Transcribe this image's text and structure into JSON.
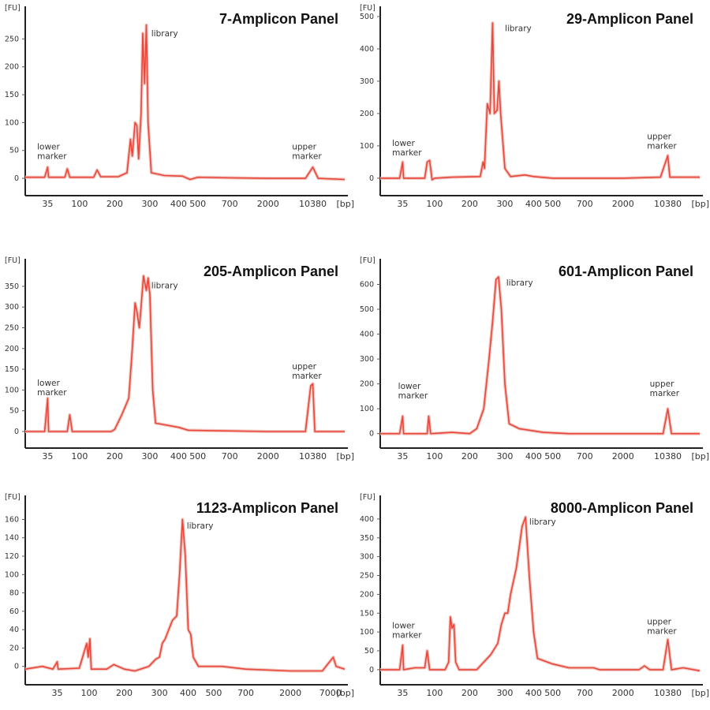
{
  "chart_data": [
    {
      "type": "line",
      "title": "7-Amplicon Panel",
      "ylabel": "[FU]",
      "xlabel": "[bp]",
      "yticks": [
        0,
        50,
        100,
        150,
        200,
        250
      ],
      "ylim": [
        -31,
        300
      ],
      "xticks": [
        "35",
        "100",
        "200",
        "300",
        "400",
        "500",
        "700",
        "2000",
        "10380"
      ],
      "grid": false,
      "color": "#e8483c",
      "annotations": [
        {
          "text": [
            "lower",
            "marker"
          ],
          "at": [
            28,
            52
          ]
        },
        {
          "text": [
            "library"
          ],
          "at": [
            305,
            255
          ]
        },
        {
          "text": [
            "upper",
            "marker"
          ],
          "at": [
            6500,
            52
          ]
        }
      ],
      "series": [
        {
          "points": [
            [
              20,
              2
            ],
            [
              33,
              2
            ],
            [
              35,
              20
            ],
            [
              37,
              2
            ],
            [
              70,
              2
            ],
            [
              75,
              17
            ],
            [
              80,
              2
            ],
            [
              140,
              2
            ],
            [
              150,
              15
            ],
            [
              160,
              3
            ],
            [
              210,
              3
            ],
            [
              235,
              10
            ],
            [
              245,
              70
            ],
            [
              250,
              40
            ],
            [
              258,
              100
            ],
            [
              263,
              95
            ],
            [
              268,
              35
            ],
            [
              275,
              115
            ],
            [
              280,
              260
            ],
            [
              285,
              170
            ],
            [
              290,
              275
            ],
            [
              295,
              100
            ],
            [
              305,
              10
            ],
            [
              350,
              5
            ],
            [
              420,
              4
            ],
            [
              460,
              -2
            ],
            [
              500,
              2
            ],
            [
              700,
              1
            ],
            [
              2000,
              0
            ],
            [
              9000,
              0
            ],
            [
              10380,
              20
            ],
            [
              12000,
              0
            ],
            [
              20000,
              -2
            ]
          ]
        }
      ]
    },
    {
      "type": "line",
      "title": "29-Amplicon Panel",
      "ylabel": "[FU]",
      "xlabel": "[bp]",
      "yticks": [
        0,
        100,
        200,
        300,
        400,
        500
      ],
      "ylim": [
        -54,
        517
      ],
      "xticks": [
        "35",
        "100",
        "200",
        "300",
        "400",
        "500",
        "700",
        "2000",
        "10380"
      ],
      "grid": false,
      "color": "#e8483c",
      "annotations": [
        {
          "text": [
            "lower",
            "marker"
          ],
          "at": [
            28,
            100
          ]
        },
        {
          "text": [
            "library"
          ],
          "at": [
            300,
            455
          ]
        },
        {
          "text": [
            "upper",
            "marker"
          ],
          "at": [
            6500,
            120
          ]
        }
      ],
      "series": [
        {
          "points": [
            [
              20,
              0
            ],
            [
              33,
              0
            ],
            [
              35,
              50
            ],
            [
              37,
              0
            ],
            [
              80,
              0
            ],
            [
              85,
              50
            ],
            [
              90,
              55
            ],
            [
              95,
              -5
            ],
            [
              100,
              0
            ],
            [
              150,
              3
            ],
            [
              230,
              5
            ],
            [
              238,
              50
            ],
            [
              242,
              30
            ],
            [
              250,
              230
            ],
            [
              258,
              200
            ],
            [
              265,
              480
            ],
            [
              270,
              200
            ],
            [
              278,
              210
            ],
            [
              283,
              300
            ],
            [
              288,
              200
            ],
            [
              300,
              30
            ],
            [
              320,
              5
            ],
            [
              370,
              10
            ],
            [
              400,
              5
            ],
            [
              500,
              0
            ],
            [
              2000,
              0
            ],
            [
              9000,
              3
            ],
            [
              10380,
              70
            ],
            [
              11000,
              3
            ],
            [
              20000,
              3
            ]
          ]
        }
      ]
    },
    {
      "type": "line",
      "title": "205-Amplicon Panel",
      "ylabel": "[FU]",
      "xlabel": "[bp]",
      "yticks": [
        0,
        50,
        100,
        150,
        200,
        250,
        300,
        350
      ],
      "ylim": [
        -40,
        405
      ],
      "xticks": [
        "35",
        "100",
        "200",
        "300",
        "400",
        "500",
        "700",
        "2000",
        "10380"
      ],
      "grid": false,
      "color": "#e8483c",
      "annotations": [
        {
          "text": [
            "lower",
            "marker"
          ],
          "at": [
            28,
            110
          ]
        },
        {
          "text": [
            "library"
          ],
          "at": [
            305,
            345
          ]
        },
        {
          "text": [
            "upper",
            "marker"
          ],
          "at": [
            6500,
            150
          ]
        }
      ],
      "series": [
        {
          "points": [
            [
              20,
              0
            ],
            [
              33,
              0
            ],
            [
              35,
              80
            ],
            [
              37,
              0
            ],
            [
              75,
              0
            ],
            [
              80,
              40
            ],
            [
              85,
              0
            ],
            [
              190,
              0
            ],
            [
              200,
              5
            ],
            [
              220,
              40
            ],
            [
              240,
              80
            ],
            [
              250,
              200
            ],
            [
              258,
              310
            ],
            [
              263,
              290
            ],
            [
              270,
              250
            ],
            [
              275,
              300
            ],
            [
              282,
              375
            ],
            [
              290,
              340
            ],
            [
              295,
              370
            ],
            [
              300,
              330
            ],
            [
              310,
              100
            ],
            [
              320,
              20
            ],
            [
              400,
              10
            ],
            [
              450,
              3
            ],
            [
              2000,
              0
            ],
            [
              9000,
              0
            ],
            [
              10000,
              110
            ],
            [
              10380,
              115
            ],
            [
              11000,
              0
            ],
            [
              20000,
              0
            ]
          ]
        }
      ]
    },
    {
      "type": "line",
      "title": "601-Amplicon Panel",
      "ylabel": "[FU]",
      "xlabel": "[bp]",
      "yticks": [
        0,
        100,
        200,
        300,
        400,
        500,
        600
      ],
      "ylim": [
        -58,
        684
      ],
      "xticks": [
        "35",
        "100",
        "200",
        "300",
        "400",
        "500",
        "700",
        "2000",
        "10380"
      ],
      "grid": false,
      "color": "#e8483c",
      "annotations": [
        {
          "text": [
            "lower",
            "marker"
          ],
          "at": [
            32,
            180
          ]
        },
        {
          "text": [
            "library"
          ],
          "at": [
            305,
            595
          ]
        },
        {
          "text": [
            "upper",
            "marker"
          ],
          "at": [
            7000,
            190
          ]
        }
      ],
      "series": [
        {
          "points": [
            [
              20,
              0
            ],
            [
              33,
              0
            ],
            [
              35,
              70
            ],
            [
              37,
              0
            ],
            [
              85,
              0
            ],
            [
              88,
              70
            ],
            [
              92,
              0
            ],
            [
              150,
              5
            ],
            [
              200,
              0
            ],
            [
              220,
              20
            ],
            [
              240,
              100
            ],
            [
              255,
              300
            ],
            [
              265,
              450
            ],
            [
              275,
              620
            ],
            [
              282,
              630
            ],
            [
              290,
              500
            ],
            [
              300,
              200
            ],
            [
              315,
              40
            ],
            [
              350,
              20
            ],
            [
              450,
              5
            ],
            [
              600,
              0
            ],
            [
              2000,
              0
            ],
            [
              9500,
              0
            ],
            [
              10380,
              100
            ],
            [
              11500,
              0
            ],
            [
              20000,
              0
            ]
          ]
        }
      ]
    },
    {
      "type": "line",
      "title": "1123-Amplicon Panel",
      "ylabel": "[FU]",
      "xlabel": "[bp]",
      "yticks": [
        0,
        20,
        40,
        60,
        80,
        100,
        120,
        140,
        160
      ],
      "ylim": [
        -20,
        181
      ],
      "xticks": [
        "35",
        "100",
        "200",
        "300",
        "400",
        "500",
        "700",
        "2000",
        "7000"
      ],
      "grid": false,
      "color": "#e8483c",
      "annotations": [
        {
          "text": [
            "library"
          ],
          "at": [
            395,
            150
          ]
        }
      ],
      "series": [
        {
          "points": [
            [
              20,
              -3
            ],
            [
              28,
              0
            ],
            [
              33,
              -3
            ],
            [
              35,
              5
            ],
            [
              37,
              -3
            ],
            [
              80,
              -2
            ],
            [
              95,
              25
            ],
            [
              98,
              10
            ],
            [
              102,
              30
            ],
            [
              106,
              -3
            ],
            [
              150,
              -3
            ],
            [
              170,
              2
            ],
            [
              200,
              -3
            ],
            [
              230,
              -5
            ],
            [
              270,
              0
            ],
            [
              290,
              8
            ],
            [
              300,
              10
            ],
            [
              310,
              25
            ],
            [
              320,
              30
            ],
            [
              330,
              38
            ],
            [
              345,
              50
            ],
            [
              360,
              55
            ],
            [
              370,
              100
            ],
            [
              380,
              160
            ],
            [
              390,
              120
            ],
            [
              400,
              40
            ],
            [
              410,
              35
            ],
            [
              420,
              10
            ],
            [
              440,
              0
            ],
            [
              550,
              0
            ],
            [
              700,
              -3
            ],
            [
              2000,
              -5
            ],
            [
              6000,
              -5
            ],
            [
              8000,
              10
            ],
            [
              9000,
              0
            ],
            [
              12000,
              -3
            ]
          ]
        }
      ]
    },
    {
      "type": "line",
      "title": "8000-Amplicon Panel",
      "ylabel": "[FU]",
      "xlabel": "[bp]",
      "yticks": [
        0,
        50,
        100,
        150,
        200,
        250,
        300,
        350,
        400
      ],
      "ylim": [
        -40,
        450
      ],
      "xticks": [
        "35",
        "100",
        "200",
        "300",
        "400",
        "500",
        "700",
        "2000",
        "10380"
      ],
      "grid": false,
      "color": "#e8483c",
      "annotations": [
        {
          "text": [
            "lower",
            "marker"
          ],
          "at": [
            28,
            110
          ]
        },
        {
          "text": [
            "library"
          ],
          "at": [
            385,
            385
          ]
        },
        {
          "text": [
            "upper",
            "marker"
          ],
          "at": [
            6500,
            120
          ]
        }
      ],
      "series": [
        {
          "points": [
            [
              20,
              0
            ],
            [
              33,
              0
            ],
            [
              35,
              65
            ],
            [
              37,
              0
            ],
            [
              60,
              5
            ],
            [
              80,
              5
            ],
            [
              85,
              50
            ],
            [
              90,
              0
            ],
            [
              130,
              0
            ],
            [
              140,
              20
            ],
            [
              145,
              140
            ],
            [
              150,
              110
            ],
            [
              155,
              120
            ],
            [
              160,
              20
            ],
            [
              170,
              0
            ],
            [
              220,
              0
            ],
            [
              260,
              40
            ],
            [
              280,
              70
            ],
            [
              290,
              120
            ],
            [
              300,
              150
            ],
            [
              310,
              150
            ],
            [
              320,
              200
            ],
            [
              340,
              270
            ],
            [
              360,
              380
            ],
            [
              372,
              405
            ],
            [
              385,
              250
            ],
            [
              400,
              100
            ],
            [
              420,
              30
            ],
            [
              500,
              15
            ],
            [
              600,
              5
            ],
            [
              1000,
              5
            ],
            [
              1200,
              0
            ],
            [
              5000,
              0
            ],
            [
              6000,
              10
            ],
            [
              7000,
              0
            ],
            [
              9500,
              0
            ],
            [
              10380,
              80
            ],
            [
              11500,
              0
            ],
            [
              15000,
              5
            ],
            [
              20000,
              -3
            ]
          ]
        }
      ]
    }
  ]
}
